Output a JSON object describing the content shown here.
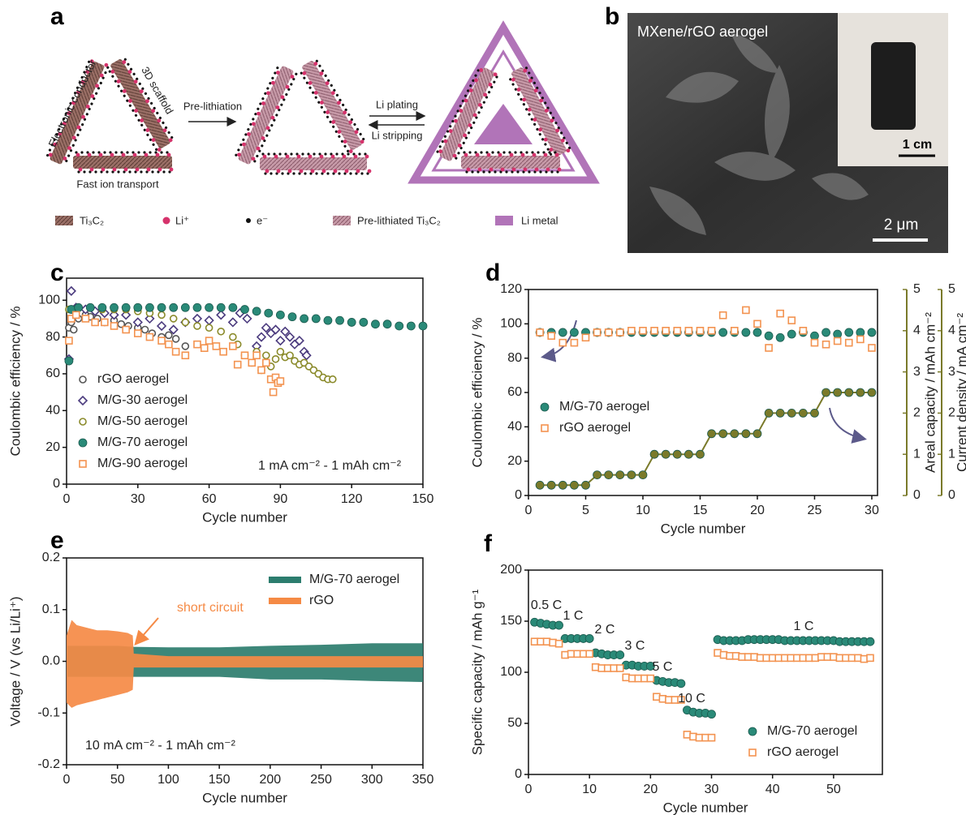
{
  "figure_a": {
    "panel_label": "a",
    "labels": {
      "conductor": "Electronic conductor",
      "scaffold": "3D scaffold",
      "transport": "Fast ion transport",
      "prelithiation": "Pre-lithiation",
      "plating": "Li plating",
      "stripping": "Li stripping"
    },
    "legend": [
      "Ti₃C₂",
      "Li⁺",
      "e⁻",
      "Pre-lithiated  Ti₃C₂",
      "Li metal"
    ]
  },
  "figure_b": {
    "panel_label": "b",
    "title": "MXene/rGO aerogel",
    "inset_scale": "1 cm",
    "scale": "2 μm"
  },
  "chart_data": [
    {
      "type": "scatter",
      "panel_label": "c",
      "xlabel": "Cycle number",
      "ylabel": "Coulombic efficiency / %",
      "xlim": [
        0,
        150
      ],
      "xticks": [
        0,
        30,
        60,
        90,
        120,
        150
      ],
      "ylim": [
        0,
        112
      ],
      "yticks": [
        0,
        20,
        40,
        60,
        80,
        100
      ],
      "legend": "lower left",
      "annotations": [
        {
          "text": "1 mA cm⁻² - 1 mAh cm⁻²"
        }
      ],
      "series": [
        {
          "name": "rGO aerogel",
          "color": "#555555",
          "marker": "circle",
          "filled": false,
          "x": [
            1,
            2,
            3,
            5,
            8,
            10,
            13,
            16,
            20,
            23,
            26,
            30,
            33,
            36,
            40,
            43,
            46,
            50
          ],
          "values": [
            85,
            88,
            84,
            90,
            92,
            91,
            90,
            88,
            89,
            87,
            86,
            85,
            84,
            82,
            80,
            81,
            79,
            75
          ]
        },
        {
          "name": "M/G-30 aerogel",
          "color": "#4b3b7e",
          "marker": "diamond",
          "filled": false,
          "x": [
            1,
            2,
            4,
            8,
            12,
            16,
            20,
            25,
            30,
            35,
            40,
            45,
            50,
            55,
            60,
            65,
            70,
            73,
            76,
            80,
            82,
            84,
            86,
            88,
            90,
            92,
            94,
            96,
            98,
            100,
            101
          ],
          "values": [
            68,
            105,
            96,
            95,
            94,
            93,
            92,
            92,
            88,
            90,
            86,
            84,
            88,
            90,
            89,
            92,
            88,
            93,
            90,
            75,
            80,
            85,
            82,
            84,
            78,
            83,
            80,
            76,
            78,
            72,
            70
          ]
        },
        {
          "name": "M/G-50 aerogel",
          "color": "#8a8a2a",
          "marker": "circle",
          "filled": false,
          "x": [
            1,
            5,
            10,
            15,
            20,
            25,
            30,
            35,
            40,
            45,
            50,
            55,
            60,
            65,
            70,
            72,
            75,
            78,
            80,
            82,
            84,
            86,
            88,
            90,
            92,
            94,
            96,
            98,
            100,
            102,
            104,
            106,
            108,
            110,
            112
          ],
          "values": [
            95,
            96,
            96,
            95,
            95,
            95,
            94,
            93,
            92,
            90,
            88,
            86,
            85,
            83,
            80,
            76,
            70,
            66,
            72,
            62,
            70,
            64,
            68,
            72,
            69,
            70,
            67,
            65,
            66,
            64,
            62,
            60,
            58,
            57,
            57
          ]
        },
        {
          "name": "M/G-70 aerogel",
          "color": "#2a8a78",
          "marker": "circle",
          "filled": true,
          "x": [
            1,
            2,
            5,
            10,
            15,
            20,
            25,
            30,
            35,
            40,
            45,
            50,
            55,
            60,
            65,
            70,
            75,
            80,
            85,
            90,
            95,
            100,
            105,
            110,
            115,
            120,
            125,
            130,
            135,
            140,
            145,
            150
          ],
          "values": [
            67,
            95,
            96,
            96,
            96,
            96,
            96,
            96,
            96,
            96,
            96,
            96,
            96,
            96,
            96,
            96,
            95,
            94,
            93,
            92,
            91,
            90,
            90,
            89,
            89,
            88,
            88,
            87,
            87,
            86,
            86,
            86
          ]
        },
        {
          "name": "M/G-90 aerogel",
          "color": "#f39350",
          "marker": "square",
          "filled": false,
          "x": [
            1,
            2,
            4,
            8,
            12,
            16,
            20,
            25,
            30,
            35,
            40,
            43,
            46,
            50,
            55,
            58,
            60,
            63,
            66,
            70,
            72,
            75,
            78,
            80,
            82,
            84,
            86,
            87,
            88,
            89,
            90
          ],
          "values": [
            78,
            90,
            92,
            90,
            88,
            88,
            86,
            84,
            82,
            80,
            78,
            76,
            72,
            70,
            76,
            74,
            78,
            75,
            72,
            75,
            65,
            70,
            66,
            70,
            62,
            66,
            57,
            50,
            58,
            55,
            56
          ]
        }
      ]
    },
    {
      "type": "scatter",
      "panel_label": "d",
      "xlabel": "Cycle number",
      "ylabel": "Coulombic efficiency / %",
      "y2label": "Areal capacity / mAh cm⁻²",
      "y3label": "Current density / mA cm⁻²",
      "xlim": [
        0,
        30.5
      ],
      "xticks": [
        0,
        5,
        10,
        15,
        20,
        25,
        30
      ],
      "ylim": [
        0,
        120
      ],
      "yticks": [
        0,
        20,
        40,
        60,
        80,
        100,
        120
      ],
      "y2lim": [
        0,
        5
      ],
      "y2ticks": [
        0,
        1,
        2,
        3,
        4,
        5
      ],
      "y3lim": [
        0,
        5
      ],
      "y3ticks": [
        0,
        1,
        2,
        3,
        4,
        5
      ],
      "legend": "center left",
      "x": [
        1,
        2,
        3,
        4,
        5,
        6,
        7,
        8,
        9,
        10,
        11,
        12,
        13,
        14,
        15,
        16,
        17,
        18,
        19,
        20,
        21,
        22,
        23,
        24,
        25,
        26,
        27,
        28,
        29,
        30
      ],
      "series": [
        {
          "name": "M/G-70 aerogel",
          "color": "#2a8a78",
          "marker": "circle",
          "filled": true,
          "values": [
            95,
            95,
            95,
            95,
            95,
            95,
            95,
            95,
            95,
            95,
            95,
            95,
            95,
            95,
            95,
            95,
            95,
            95,
            95,
            95,
            93,
            92,
            94,
            95,
            93,
            95,
            94,
            95,
            95,
            95
          ]
        },
        {
          "name": "rGO aerogel",
          "color": "#f39350",
          "marker": "square",
          "filled": false,
          "values": [
            95,
            93,
            89,
            89,
            92,
            95,
            95,
            95,
            96,
            96,
            96,
            96,
            96,
            96,
            96,
            96,
            105,
            96,
            108,
            100,
            86,
            106,
            102,
            96,
            89,
            88,
            90,
            89,
            91,
            86
          ]
        },
        {
          "color": "#7a7a2a",
          "marker": "circle",
          "filled": true,
          "line": true,
          "axis": "y2",
          "values": [
            0.25,
            0.25,
            0.25,
            0.25,
            0.25,
            0.5,
            0.5,
            0.5,
            0.5,
            0.5,
            1,
            1,
            1,
            1,
            1,
            1.5,
            1.5,
            1.5,
            1.5,
            1.5,
            2,
            2,
            2,
            2,
            2,
            2.5,
            2.5,
            2.5,
            2.5,
            2.5
          ]
        }
      ]
    },
    {
      "type": "band",
      "panel_label": "e",
      "xlabel": "Cycle number",
      "ylabel": "Voltage / V (vs Li/Li⁺)",
      "xlim": [
        0,
        350
      ],
      "xticks": [
        0,
        50,
        100,
        150,
        200,
        250,
        300,
        350
      ],
      "ylim": [
        -0.2,
        0.2
      ],
      "yticks": [
        -0.2,
        -0.1,
        {
          "value": 0,
          "label": "0.0"
        },
        0.1,
        0.2
      ],
      "legend": "upper right",
      "annotations": [
        {
          "text": "short circuit",
          "color": "#f58a45"
        },
        {
          "text": "10 mA cm⁻² - 1 mAh cm⁻²"
        }
      ],
      "series": [
        {
          "name": "M/G-70 aerogel",
          "color": "#2c7d6e",
          "x": [
            0,
            25,
            50,
            65,
            100,
            150,
            200,
            250,
            300,
            350
          ],
          "low": [
            -0.03,
            -0.03,
            -0.03,
            -0.03,
            -0.03,
            -0.03,
            -0.035,
            -0.035,
            -0.038,
            -0.04
          ],
          "high": [
            0.03,
            0.03,
            0.03,
            0.028,
            0.027,
            0.027,
            0.03,
            0.032,
            0.035,
            0.035
          ]
        },
        {
          "name": "rGO",
          "color": "#f58a45",
          "x": [
            0,
            5,
            10,
            20,
            30,
            40,
            50,
            60,
            65,
            66,
            100,
            150,
            200,
            250,
            300,
            350
          ],
          "low": [
            -0.08,
            -0.09,
            -0.085,
            -0.08,
            -0.075,
            -0.07,
            -0.065,
            -0.06,
            -0.055,
            -0.012,
            -0.012,
            -0.012,
            -0.012,
            -0.012,
            -0.012,
            -0.012
          ],
          "high": [
            0.05,
            0.08,
            0.07,
            0.065,
            0.06,
            0.06,
            0.058,
            0.055,
            0.05,
            0.015,
            0.01,
            0.01,
            0.01,
            0.01,
            0.01,
            0.01
          ]
        }
      ]
    },
    {
      "type": "scatter",
      "panel_label": "f",
      "xlabel": "Cycle number",
      "ylabel": "Specific capacity / mAh g⁻¹",
      "xlim": [
        0,
        58
      ],
      "xticks": [
        0,
        10,
        20,
        30,
        40,
        50
      ],
      "ylim": [
        0,
        200
      ],
      "yticks": [
        0,
        50,
        100,
        150,
        200
      ],
      "legend": "lower right",
      "annotations": [
        {
          "text": "0.5 C"
        },
        {
          "text": "1 C"
        },
        {
          "text": "2 C"
        },
        {
          "text": "3 C"
        },
        {
          "text": "5 C"
        },
        {
          "text": "10 C"
        },
        {
          "text": "1 C"
        }
      ],
      "x": [
        1,
        2,
        3,
        4,
        5,
        6,
        7,
        8,
        9,
        10,
        11,
        12,
        13,
        14,
        15,
        16,
        17,
        18,
        19,
        20,
        21,
        22,
        23,
        24,
        25,
        26,
        27,
        28,
        29,
        30,
        31,
        32,
        33,
        34,
        35,
        36,
        37,
        38,
        39,
        40,
        41,
        42,
        43,
        44,
        45,
        46,
        47,
        48,
        49,
        50,
        51,
        52,
        53,
        54,
        55,
        56
      ],
      "series": [
        {
          "name": "M/G-70 aerogel",
          "color": "#2a8a78",
          "marker": "circle",
          "filled": true,
          "values": [
            149,
            148,
            147,
            146,
            146,
            133,
            133,
            133,
            133,
            133,
            119,
            118,
            117,
            117,
            117,
            107,
            107,
            106,
            106,
            106,
            92,
            91,
            90,
            90,
            89,
            63,
            61,
            60,
            60,
            59,
            132,
            131,
            131,
            131,
            131,
            132,
            132,
            132,
            132,
            132,
            132,
            131,
            131,
            131,
            131,
            131,
            131,
            131,
            131,
            131,
            130,
            130,
            130,
            130,
            130,
            130
          ]
        },
        {
          "name": "rGO aerogel",
          "color": "#f39350",
          "marker": "square",
          "filled": false,
          "values": [
            130,
            130,
            130,
            129,
            128,
            117,
            118,
            118,
            118,
            118,
            105,
            104,
            104,
            104,
            104,
            95,
            94,
            94,
            94,
            94,
            76,
            74,
            73,
            73,
            73,
            39,
            37,
            36,
            36,
            36,
            119,
            117,
            116,
            116,
            115,
            115,
            115,
            114,
            114,
            114,
            114,
            114,
            114,
            114,
            114,
            114,
            114,
            115,
            115,
            115,
            114,
            114,
            114,
            114,
            113,
            114
          ]
        }
      ]
    }
  ]
}
